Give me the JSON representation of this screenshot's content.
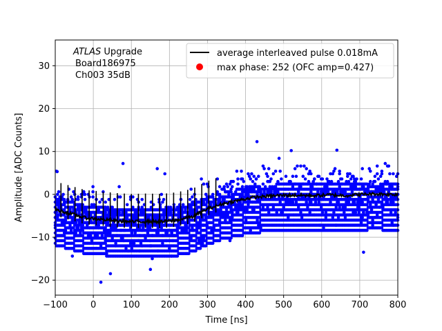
{
  "chart_data": {
    "type": "scatter",
    "xlabel": "Time [ns]",
    "ylabel": "Amplitude [ADC Counts]",
    "xlim": [
      -100,
      800
    ],
    "ylim": [
      -23.5,
      36
    ],
    "xticks": [
      -100,
      0,
      100,
      200,
      300,
      400,
      500,
      600,
      700,
      800
    ],
    "yticks": [
      -20,
      -10,
      0,
      10,
      20,
      30
    ],
    "grid": true,
    "annotation": {
      "experiment": "ATLAS",
      "experiment_suffix": "Upgrade",
      "board": "Board186975",
      "channel": "Ch003 35dB"
    },
    "legend": {
      "placement": "top-right",
      "entries": [
        {
          "label": "average interleaved pulse 0.018mA",
          "marker": "line",
          "color": "#000000"
        },
        {
          "label": "max phase: 252 (OFC amp=0.427)",
          "marker": "circle",
          "color": "#ff0000"
        }
      ]
    },
    "series": [
      {
        "name": "samples",
        "kind": "scatter",
        "color": "#0000ff",
        "pattern": {
          "x_range": [
            -100,
            800
          ],
          "x_step": 3,
          "adc_step": 0.6,
          "core_band": [
            -9.0,
            1.8
          ],
          "baseline_sigma": 2.1
        },
        "outliers": [
          {
            "x": 20,
            "y": -20.5
          },
          {
            "x": 45,
            "y": -18.5
          },
          {
            "x": 78,
            "y": 7.2
          },
          {
            "x": 168,
            "y": 6.0
          },
          {
            "x": 430,
            "y": 12.3
          },
          {
            "x": 520,
            "y": 10.2
          },
          {
            "x": 640,
            "y": 10.3
          },
          {
            "x": 710,
            "y": -13.5
          },
          {
            "x": -95,
            "y": 5.3
          },
          {
            "x": 150,
            "y": -17.5
          }
        ]
      },
      {
        "name": "average interleaved pulse 0.018mA",
        "kind": "line",
        "color": "#000000",
        "x": [
          -100,
          -60,
          -20,
          20,
          60,
          100,
          140,
          180,
          220,
          260,
          300,
          340,
          380,
          420,
          460,
          500,
          540,
          580,
          620,
          660,
          700,
          740,
          780,
          800
        ],
        "y": [
          -3.5,
          -4.5,
          -5.5,
          -5.8,
          -6.2,
          -6.4,
          -6.3,
          -6.4,
          -6.0,
          -5.2,
          -3.4,
          -2.2,
          -1.4,
          -0.7,
          -0.4,
          -0.2,
          -0.2,
          -0.3,
          -0.1,
          -0.3,
          0.0,
          0.1,
          0.0,
          0.0
        ]
      }
    ]
  }
}
